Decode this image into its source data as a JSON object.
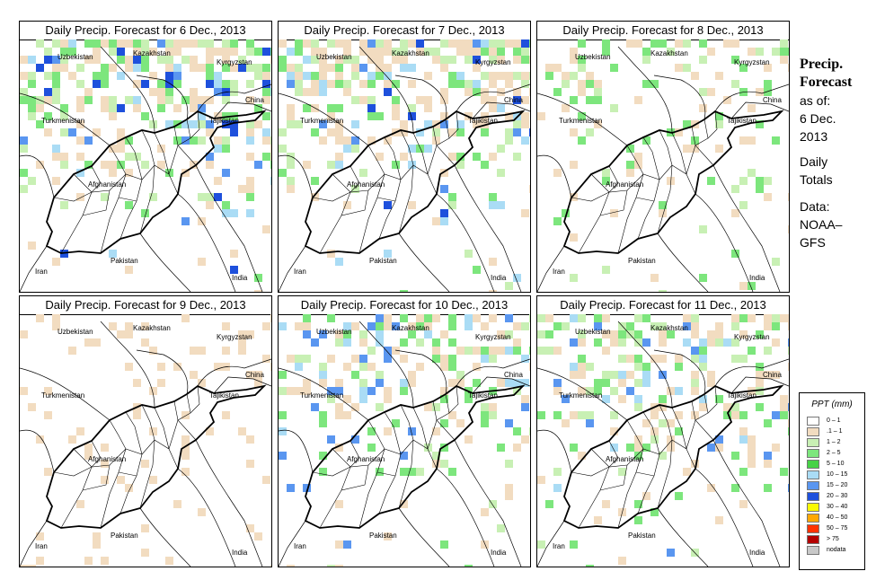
{
  "panels": [
    {
      "title": "Daily Precip. Forecast for  6 Dec., 2013",
      "intensity": 3
    },
    {
      "title": "Daily Precip. Forecast for  7 Dec., 2013",
      "intensity": 3
    },
    {
      "title": "Daily Precip. Forecast for  8 Dec., 2013",
      "intensity": 1
    },
    {
      "title": "Daily Precip. Forecast for  9 Dec., 2013",
      "intensity": 0
    },
    {
      "title": "Daily Precip. Forecast for  10 Dec., 2013",
      "intensity": 2
    },
    {
      "title": "Daily Precip. Forecast for  11 Dec., 2013",
      "intensity": 2
    }
  ],
  "map_labels": {
    "uzbekistan": "Uzbekistan",
    "kazakhstan": "Kazakhstan",
    "kyrgyzstan": "Kyrgyzstan",
    "china": "China",
    "turkmenistan": "Turkmenistan",
    "tajikistan": "Tajikistan",
    "afghanistan": "Afghanistan",
    "iran": "Iran",
    "pakistan": "Pakistan",
    "india": "India"
  },
  "sidebar": {
    "title_line1": "Precip.",
    "title_line2": "Forecast",
    "asof": "as of:",
    "date_line1": "6 Dec.",
    "date_line2": "2013",
    "totals_line1": "Daily",
    "totals_line2": "Totals",
    "data_label": "Data:",
    "data_line1": "NOAA–",
    "data_line2": "GFS"
  },
  "legend": {
    "title": "PPT (mm)",
    "items": [
      {
        "label": "0 – 1",
        "color": "#ffffff"
      },
      {
        "label": ".1 – 1",
        "color": "#f2dcc0"
      },
      {
        "label": "1 – 2",
        "color": "#c8f0b4"
      },
      {
        "label": "2 – 5",
        "color": "#7de67d"
      },
      {
        "label": "5 – 10",
        "color": "#46d246"
      },
      {
        "label": "10 – 15",
        "color": "#aadcf5"
      },
      {
        "label": "15 – 20",
        "color": "#5a96f0"
      },
      {
        "label": "20 – 30",
        "color": "#1e50dc"
      },
      {
        "label": "30 – 40",
        "color": "#fafa00"
      },
      {
        "label": "40 – 50",
        "color": "#ffa800"
      },
      {
        "label": "50 – 75",
        "color": "#ff3200"
      },
      {
        "label": "> 75",
        "color": "#b40000"
      },
      {
        "label": "nodata",
        "color": "#c8c8c8"
      }
    ]
  }
}
